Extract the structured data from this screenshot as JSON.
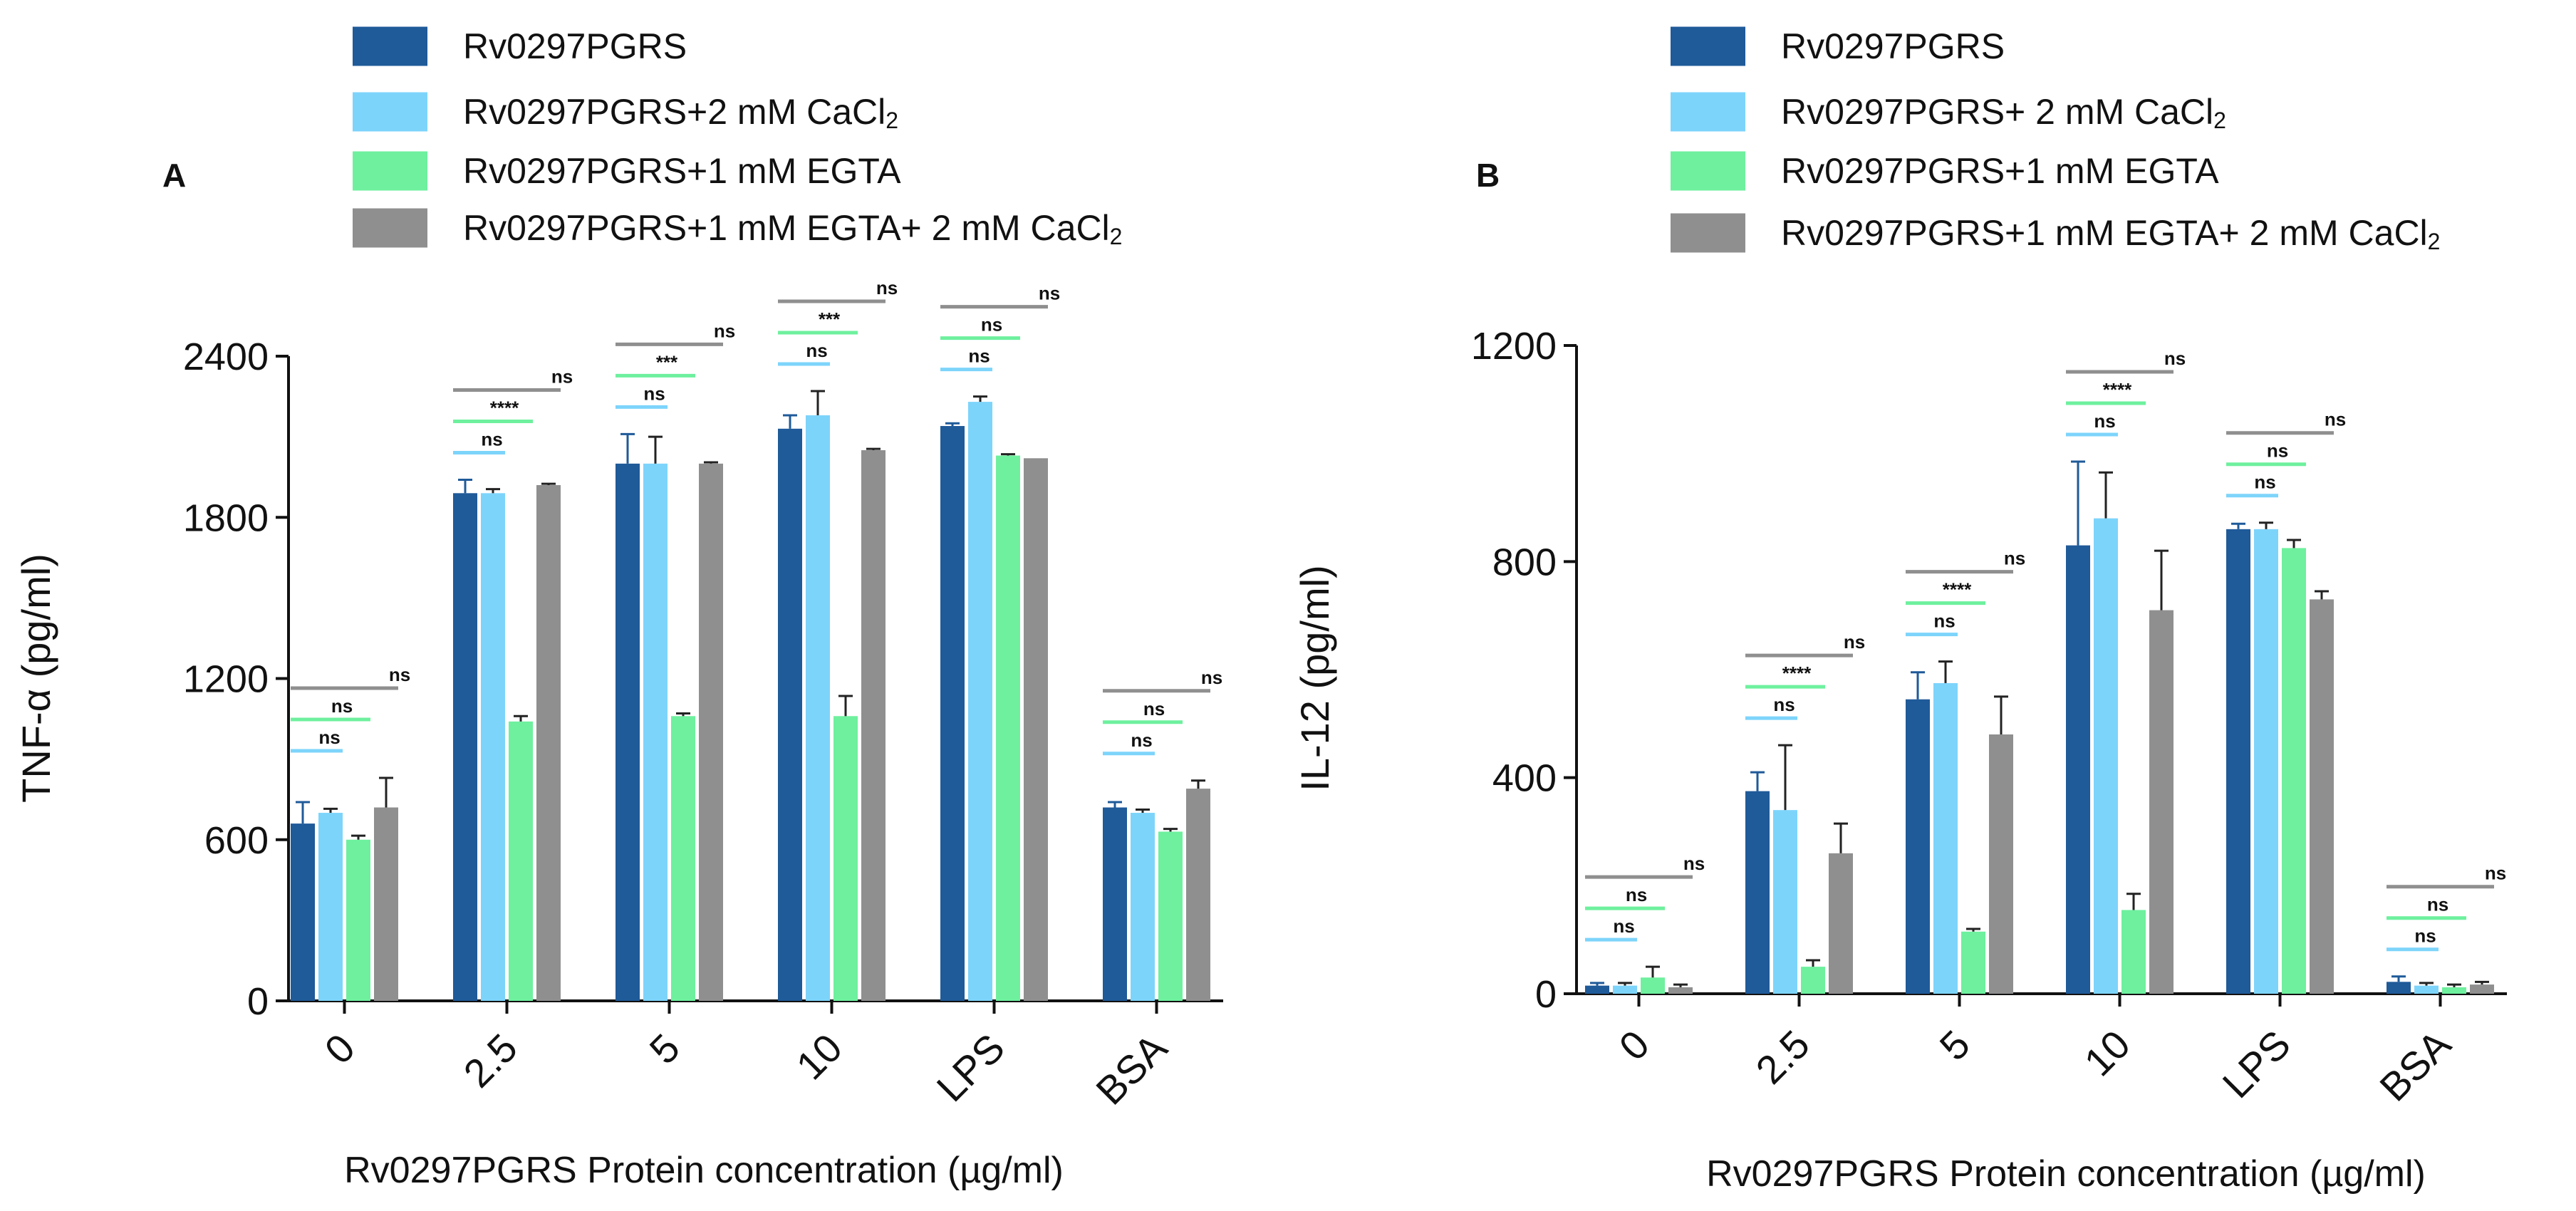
{
  "chart_data": [
    {
      "type": "bar",
      "panel": "A",
      "title": "",
      "xlabel": "Rv0297PGRS Protein concentration (µg/ml)",
      "ylabel": "TNF-α (pg/ml)",
      "ylim": [
        0,
        2400
      ],
      "yticks": [
        "0",
        "600",
        "1200",
        "1800",
        "2400"
      ],
      "ytick_values": [
        0,
        600,
        1200,
        1800,
        2400
      ],
      "categories": [
        "0",
        "2.5",
        "5",
        "10",
        "LPS",
        "BSA"
      ],
      "legend": {
        "position": "top",
        "entries": [
          {
            "label": "Rv0297PGRS"
          },
          {
            "label": "Rv0297PGRS+2 mM CaCl",
            "sub": "2"
          },
          {
            "label": "Rv0297PGRS+1 mM EGTA"
          },
          {
            "label": "Rv0297PGRS+1 mM EGTA+ 2 mM CaCl",
            "sub": "2"
          }
        ]
      },
      "series": [
        {
          "name": "Rv0297PGRS",
          "color": "#1f5a99",
          "values": [
            660,
            1890,
            2000,
            2130,
            2140,
            720
          ],
          "errors": [
            80,
            50,
            110,
            50,
            10,
            20
          ]
        },
        {
          "name": "Rv0297PGRS+2 mM CaCl2",
          "color": "#7dd4fb",
          "values": [
            700,
            1890,
            2000,
            2180,
            2230,
            700
          ],
          "errors": [
            15,
            15,
            100,
            90,
            20,
            12
          ]
        },
        {
          "name": "Rv0297PGRS+1 mM EGTA",
          "color": "#6ef09e",
          "values": [
            600,
            1040,
            1060,
            1060,
            2030,
            630
          ],
          "errors": [
            15,
            20,
            10,
            75,
            5,
            10
          ]
        },
        {
          "name": "Rv0297PGRS+1 mM EGTA+ 2 mM CaCl2",
          "color": "#8f8f8f",
          "values": [
            720,
            1920,
            2000,
            2050,
            2020,
            790
          ],
          "errors": [
            110,
            5,
            5,
            5,
            0,
            30
          ]
        }
      ],
      "significance": [
        [
          "ns",
          "ns",
          "ns"
        ],
        [
          "ns",
          "****",
          "ns"
        ],
        [
          "ns",
          "***",
          "ns"
        ],
        [
          "ns",
          "***",
          "ns"
        ],
        [
          "ns",
          "ns",
          "ns"
        ],
        [
          "ns",
          "ns",
          "ns"
        ]
      ]
    },
    {
      "type": "bar",
      "panel": "B",
      "title": "",
      "xlabel": "Rv0297PGRS Protein concentration (µg/ml)",
      "ylabel": "IL-12 (pg/ml)",
      "ylim": [
        0,
        1200
      ],
      "yticks": [
        "0",
        "400",
        "800",
        "1200"
      ],
      "ytick_values": [
        0,
        400,
        800,
        1200
      ],
      "categories": [
        "0",
        "2.5",
        "5",
        "10",
        "LPS",
        "BSA"
      ],
      "legend": {
        "position": "top",
        "entries": [
          {
            "label": "Rv0297PGRS"
          },
          {
            "label": "Rv0297PGRS+ 2 mM CaCl",
            "sub": "2"
          },
          {
            "label": "Rv0297PGRS+1 mM EGTA"
          },
          {
            "label": "Rv0297PGRS+1 mM EGTA+ 2 mM CaCl",
            "sub": "2"
          }
        ]
      },
      "series": [
        {
          "name": "Rv0297PGRS",
          "color": "#1f5a99",
          "values": [
            15,
            375,
            545,
            830,
            860,
            22
          ],
          "errors": [
            5,
            35,
            50,
            155,
            10,
            10
          ]
        },
        {
          "name": "Rv0297PGRS+ 2 mM CaCl2",
          "color": "#7dd4fb",
          "values": [
            15,
            340,
            575,
            880,
            860,
            15
          ],
          "errors": [
            5,
            120,
            40,
            85,
            12,
            5
          ]
        },
        {
          "name": "Rv0297PGRS+1 mM EGTA",
          "color": "#6ef09e",
          "values": [
            30,
            50,
            115,
            155,
            825,
            12
          ],
          "errors": [
            20,
            12,
            5,
            30,
            15,
            5
          ]
        },
        {
          "name": "Rv0297PGRS+1 mM EGTA+ 2 mM CaCl2",
          "color": "#8f8f8f",
          "values": [
            12,
            260,
            480,
            710,
            730,
            17
          ],
          "errors": [
            5,
            55,
            70,
            110,
            15,
            5
          ]
        }
      ],
      "significance": [
        [
          "ns",
          "ns",
          "ns"
        ],
        [
          "ns",
          "****",
          "ns"
        ],
        [
          "ns",
          "****",
          "ns"
        ],
        [
          "ns",
          "****",
          "ns"
        ],
        [
          "ns",
          "ns",
          "ns"
        ],
        [
          "ns",
          "ns",
          "ns"
        ]
      ]
    }
  ]
}
